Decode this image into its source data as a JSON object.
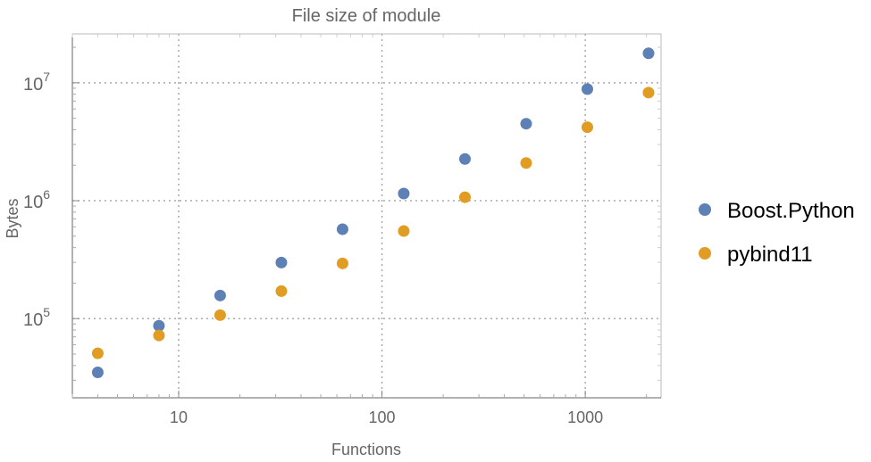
{
  "chart_data": {
    "type": "scatter",
    "title": "File size of module",
    "xlabel": "Functions",
    "ylabel": "Bytes",
    "xscale": "log",
    "yscale": "log",
    "xlim": [
      3,
      2360
    ],
    "ylim": [
      21300,
      26000000
    ],
    "grid": true,
    "legend_position": "right",
    "x_ticks": [
      {
        "value": 10,
        "label": "10"
      },
      {
        "value": 100,
        "label": "100"
      },
      {
        "value": 1000,
        "label": "1000"
      }
    ],
    "y_ticks": [
      {
        "value": 100000,
        "base": "10",
        "exp": "5"
      },
      {
        "value": 1000000,
        "base": "10",
        "exp": "6"
      },
      {
        "value": 10000000,
        "base": "10",
        "exp": "7"
      }
    ],
    "x": [
      4,
      8,
      16,
      32,
      64,
      128,
      256,
      512,
      1024,
      2048
    ],
    "series": [
      {
        "name": "Boost.Python",
        "color": "#5e81b5",
        "values": [
          35000,
          87000,
          157000,
          299000,
          573000,
          1150000,
          2260000,
          4500000,
          8850000,
          17800000
        ]
      },
      {
        "name": "pybind11",
        "color": "#e19c24",
        "values": [
          50800,
          72000,
          107000,
          171000,
          294000,
          553000,
          1070000,
          2090000,
          4200000,
          8260000
        ]
      }
    ]
  }
}
